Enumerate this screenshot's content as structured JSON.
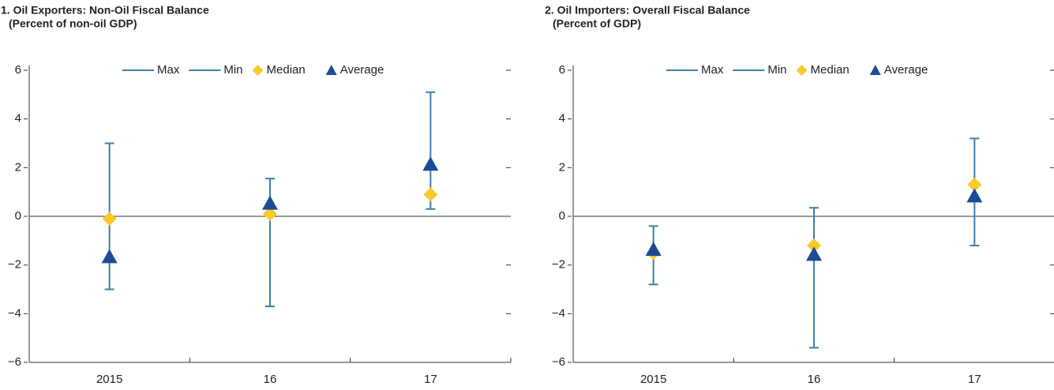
{
  "chart_data": [
    {
      "type": "range",
      "title": "1. Oil Exporters: Non-Oil Fiscal Balance",
      "subtitle": "(Percent of non-oil GDP)",
      "categories": [
        "2015",
        "16",
        "17"
      ],
      "series": [
        {
          "name": "Max",
          "color": "#3f7fa6",
          "values": [
            3.0,
            1.55,
            5.1
          ]
        },
        {
          "name": "Min",
          "color": "#3f7fa6",
          "values": [
            -3.0,
            -3.7,
            0.3
          ]
        },
        {
          "name": "Median",
          "color": "#fcc82c",
          "values": [
            -0.1,
            0.1,
            0.9
          ]
        },
        {
          "name": "Average",
          "color": "#1d4c94",
          "values": [
            -1.7,
            0.5,
            2.1
          ]
        }
      ],
      "ylim": [
        -6,
        6
      ],
      "yticks": [
        {
          "value": -6,
          "label": "−6"
        },
        {
          "value": -4,
          "label": "−4"
        },
        {
          "value": -2,
          "label": "−2"
        },
        0,
        2,
        4,
        6
      ]
    },
    {
      "type": "range",
      "title": "2. Oil Importers: Overall Fiscal Balance",
      "subtitle": "(Percent of GDP)",
      "categories": [
        "2015",
        "16",
        "17"
      ],
      "series": [
        {
          "name": "Max",
          "color": "#3f7fa6",
          "values": [
            -0.4,
            0.35,
            3.2
          ]
        },
        {
          "name": "Min",
          "color": "#3f7fa6",
          "values": [
            -2.8,
            -5.4,
            -1.2
          ]
        },
        {
          "name": "Median",
          "color": "#fcc82c",
          "values": [
            -1.5,
            -1.2,
            1.3
          ]
        },
        {
          "name": "Average",
          "color": "#1d4c94",
          "values": [
            -1.4,
            -1.6,
            0.8
          ]
        }
      ],
      "ylim": [
        -6,
        6
      ],
      "yticks": [
        {
          "value": -6,
          "label": "−6"
        },
        {
          "value": -4,
          "label": "−4"
        },
        {
          "value": -2,
          "label": "−2"
        },
        0,
        2,
        4,
        6
      ]
    }
  ]
}
